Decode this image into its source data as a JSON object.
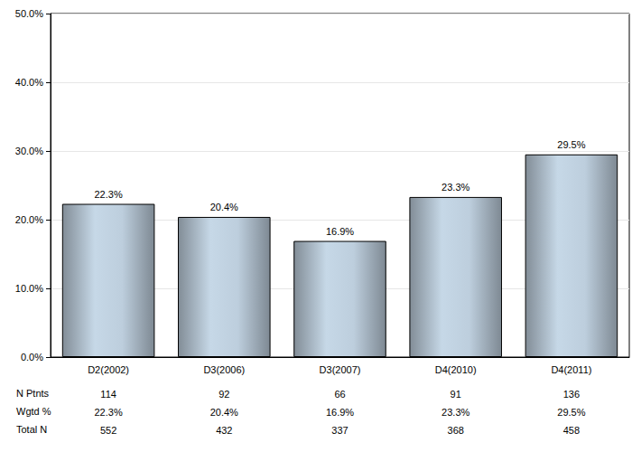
{
  "chart_data": {
    "type": "bar",
    "categories": [
      "D2(2002)",
      "D3(2006)",
      "D3(2007)",
      "D4(2010)",
      "D4(2011)"
    ],
    "values": [
      22.3,
      20.4,
      16.9,
      23.3,
      29.5
    ],
    "value_labels": [
      "22.3%",
      "20.4%",
      "16.9%",
      "23.3%",
      "29.5%"
    ],
    "data_labels": true,
    "color": "#b4c4d2",
    "ylim": [
      0,
      50
    ],
    "yticks": [
      {
        "value": 0,
        "label": "0.0%"
      },
      {
        "value": 10,
        "label": "10.0%"
      },
      {
        "value": 20,
        "label": "20.0%"
      },
      {
        "value": 30,
        "label": "30.0%"
      },
      {
        "value": 40,
        "label": "40.0%"
      },
      {
        "value": 50,
        "label": "50.0%"
      }
    ],
    "grid": true,
    "table_rows": [
      {
        "label": "N Ptnts",
        "values": [
          114,
          92,
          66,
          91,
          136
        ]
      },
      {
        "label": "Wgtd %",
        "values": [
          22.3,
          20.4,
          16.9,
          23.3,
          29.5
        ],
        "value_labels": [
          "22.3%",
          "20.4%",
          "16.9%",
          "23.3%",
          "29.5%"
        ]
      },
      {
        "label": "Total N",
        "values": [
          552,
          432,
          337,
          368,
          458
        ]
      }
    ]
  }
}
